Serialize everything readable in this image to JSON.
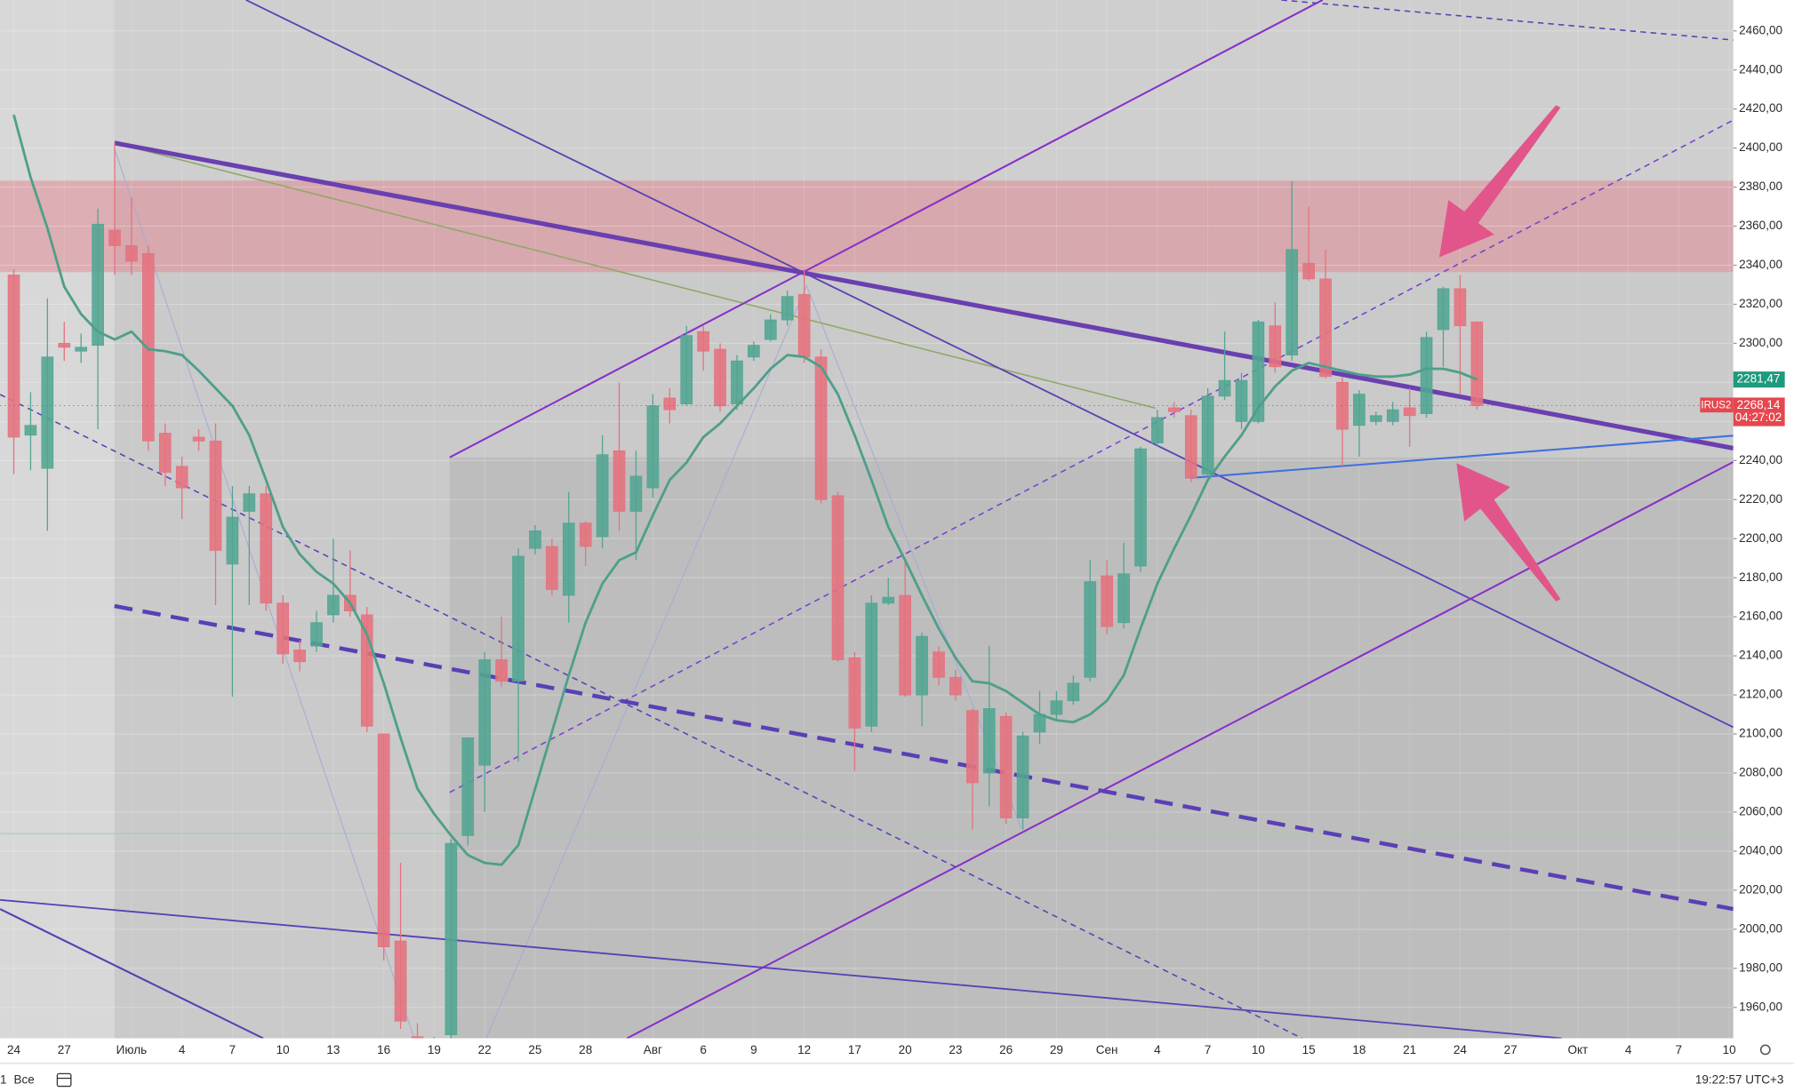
{
  "chart_data": {
    "type": "candlestick",
    "categories": [
      "24",
      null,
      null,
      "27",
      null,
      null,
      null,
      "Июль",
      null,
      null,
      "4",
      null,
      null,
      "7",
      null,
      null,
      "10",
      null,
      null,
      "13",
      null,
      null,
      "16",
      null,
      null,
      "19",
      null,
      null,
      "22",
      null,
      null,
      "25",
      null,
      null,
      "28",
      null,
      null,
      null,
      "Авг",
      null,
      null,
      "6",
      null,
      null,
      "9",
      null,
      null,
      "12",
      null,
      null,
      "17",
      null,
      null,
      "20",
      null,
      null,
      "23",
      null,
      null,
      "26",
      null,
      null,
      "29",
      null,
      null,
      "Сен",
      null,
      null,
      "4",
      null,
      null,
      "7",
      null,
      null,
      "10",
      null,
      null,
      "15",
      null,
      null,
      "18",
      null,
      null,
      "21",
      null,
      null,
      "24",
      null,
      null,
      "27",
      null,
      null,
      null,
      "Окт",
      null,
      null,
      "4",
      null,
      null,
      "7",
      null,
      null,
      "10"
    ],
    "open": [
      2335,
      2253,
      2236,
      2300,
      2296,
      2299,
      2358,
      2350,
      2346,
      2254,
      2237,
      2252,
      2250,
      2187,
      2214,
      2223,
      2167,
      2143,
      2145,
      2161,
      2171,
      2161,
      2100,
      1994,
      1945,
      1930,
      1946,
      2048,
      2084,
      2138,
      2127,
      2195,
      2196,
      2171,
      2208,
      2201,
      2245,
      2214,
      2226,
      2272,
      2269,
      2306,
      2297,
      2269,
      2293,
      2302,
      2312,
      2325,
      2293,
      2222,
      2139,
      2104,
      2167,
      2171,
      2120,
      2142,
      2129,
      2112,
      2080,
      2109,
      2057,
      2101,
      2110,
      2117,
      2129,
      2181,
      2157,
      2186,
      2249,
      2267,
      2263,
      2233,
      2273,
      2260,
      2260,
      2309,
      2294,
      2341,
      2333,
      2280,
      2258,
      2260,
      2260,
      2267,
      2264,
      2307,
      2328,
      2311,
      null,
      null,
      null,
      null,
      null,
      null,
      null,
      null,
      null,
      null,
      null,
      null,
      null,
      null,
      null
    ],
    "high": [
      2338,
      2275,
      2323,
      2311,
      2305,
      2369,
      2403,
      2375,
      2350,
      2259,
      2242,
      2256,
      2259,
      2227,
      2227,
      2227,
      2171,
      2148,
      2163,
      2200,
      2194,
      2165,
      2100,
      2034,
      1952,
      1945,
      2046,
      2098,
      2142,
      2160,
      2195,
      2207,
      2200,
      2224,
      2209,
      2253,
      2280,
      2245,
      2274,
      2277,
      2309,
      2309,
      2300,
      2294,
      2301,
      2315,
      2327,
      2338,
      2297,
      2224,
      2142,
      2171,
      2180,
      2190,
      2152,
      2145,
      2133,
      2113,
      2145,
      2111,
      2101,
      2122,
      2122,
      2130,
      2189,
      2189,
      2198,
      2247,
      2266,
      2270,
      2266,
      2277,
      2306,
      2285,
      2312,
      2321,
      2383,
      2370,
      2348,
      2283,
      2276,
      2265,
      2270,
      2277,
      2306,
      2329,
      2335,
      2311,
      null,
      null,
      null,
      null,
      null,
      null,
      null,
      null,
      null,
      null,
      null,
      null,
      null,
      null,
      null
    ],
    "low": [
      2233,
      2235,
      2204,
      2291,
      2290,
      2256,
      2335,
      2335,
      2245,
      2227,
      2210,
      2245,
      2166,
      2119,
      2166,
      2163,
      2136,
      2132,
      2142,
      2157,
      2160,
      2101,
      1984,
      1949,
      1925,
      1920,
      1943,
      2043,
      2060,
      2124,
      2086,
      2192,
      2171,
      2157,
      2186,
      2195,
      2204,
      2189,
      2221,
      2259,
      2268,
      2286,
      2265,
      2266,
      2291,
      2301,
      2309,
      2290,
      2218,
      2137,
      2081,
      2101,
      2166,
      2119,
      2104,
      2125,
      2117,
      2051,
      2063,
      2054,
      2051,
      2095,
      2107,
      2115,
      2127,
      2151,
      2154,
      2183,
      2247,
      2262,
      2229,
      2231,
      2271,
      2256,
      2259,
      2285,
      2291,
      2332,
      2282,
      2237,
      2242,
      2258,
      2258,
      2247,
      2262,
      2288,
      2274,
      2266,
      null,
      null,
      null,
      null,
      null,
      null,
      null,
      null,
      null,
      null,
      null,
      null,
      null,
      null,
      null
    ],
    "close": [
      2252,
      2258,
      2293,
      2298,
      2298,
      2361,
      2350,
      2342,
      2250,
      2234,
      2226,
      2250,
      2194,
      2211,
      2223,
      2167,
      2141,
      2137,
      2157,
      2171,
      2163,
      2104,
      1991,
      1953,
      1930,
      1935,
      2044,
      2098,
      2138,
      2127,
      2191,
      2204,
      2174,
      2208,
      2196,
      2243,
      2214,
      2232,
      2268,
      2266,
      2304,
      2296,
      2268,
      2291,
      2299,
      2312,
      2324,
      2293,
      2220,
      2138,
      2103,
      2167,
      2170,
      2120,
      2150,
      2129,
      2120,
      2075,
      2113,
      2057,
      2099,
      2110,
      2117,
      2126,
      2178,
      2155,
      2182,
      2246,
      2262,
      2265,
      2231,
      2273,
      2281,
      2281,
      2311,
      2288,
      2348,
      2333,
      2283,
      2256,
      2274,
      2263,
      2266,
      2263,
      2303,
      2328,
      2309,
      2268.14,
      null,
      null,
      null,
      null,
      null,
      null,
      null,
      null,
      null,
      null,
      null,
      null,
      null,
      null,
      null
    ],
    "up_color": "#52a592",
    "down_color": "#e5727e",
    "ma": {
      "color": "#4f9f8a",
      "values": [
        2417,
        2385,
        2359,
        2329,
        2315,
        2306,
        2302,
        2306,
        2297,
        2296,
        2294,
        2286,
        2277,
        2268,
        2253,
        2230,
        2206,
        2192,
        2183,
        2177,
        2167,
        2151,
        2126,
        2098,
        2072,
        2059,
        2048,
        2038,
        2034,
        2033,
        2043,
        2072,
        2101,
        2130,
        2157,
        2177,
        2189,
        2193,
        2212,
        2230,
        2239,
        2252,
        2259,
        2268,
        2277,
        2287,
        2294,
        2293,
        2288,
        2274,
        2253,
        2230,
        2206,
        2189,
        2171,
        2154,
        2139,
        2127,
        2126,
        2122,
        2116,
        2110,
        2107,
        2106,
        2110,
        2117,
        2130,
        2154,
        2177,
        2195,
        2212,
        2230,
        2242,
        2253,
        2267,
        2278,
        2286,
        2290,
        2288,
        2286,
        2284,
        2283,
        2283,
        2284,
        2287,
        2287,
        2285,
        2281.47,
        null,
        null,
        null,
        null,
        null,
        null,
        null,
        null,
        null,
        null,
        null,
        null,
        null,
        null,
        null
      ]
    },
    "ylim": [
      1944.2,
      2475.8
    ],
    "yticks": [
      {
        "value": 1960,
        "label": "1960,00"
      },
      {
        "value": 1980,
        "label": "1980,00"
      },
      {
        "value": 2000,
        "label": "2000,00"
      },
      {
        "value": 2020,
        "label": "2020,00"
      },
      {
        "value": 2040,
        "label": "2040,00"
      },
      {
        "value": 2060,
        "label": "2060,00"
      },
      {
        "value": 2080,
        "label": "2080,00"
      },
      {
        "value": 2100,
        "label": "2100,00"
      },
      {
        "value": 2120,
        "label": "2120,00"
      },
      {
        "value": 2140,
        "label": "2140,00"
      },
      {
        "value": 2160,
        "label": "2160,00"
      },
      {
        "value": 2180,
        "label": "2180,00"
      },
      {
        "value": 2200,
        "label": "2200,00"
      },
      {
        "value": 2220,
        "label": "2220,00"
      },
      {
        "value": 2240,
        "label": "2240,00"
      },
      {
        "value": 2260,
        "label": "2260,00"
      },
      {
        "value": 2280,
        "label": "2280,00"
      },
      {
        "value": 2300,
        "label": "2300,00"
      },
      {
        "value": 2320,
        "label": "2320,00"
      },
      {
        "value": 2340,
        "label": "2340,00"
      },
      {
        "value": 2360,
        "label": "2360,00"
      },
      {
        "value": 2380,
        "label": "2380,00"
      },
      {
        "value": 2400,
        "label": "2400,00"
      },
      {
        "value": 2420,
        "label": "2420,00"
      },
      {
        "value": 2440,
        "label": "2440,00"
      },
      {
        "value": 2460,
        "label": "2460,00"
      }
    ],
    "grid": true,
    "price_labels": [
      {
        "value": 2281.47,
        "label": "2281,47",
        "color": "#1e9a7c"
      },
      {
        "name": "IRUS2",
        "value": 2268.14,
        "label": "2268,14",
        "countdown": "04:27:02",
        "color": "#e5474f"
      }
    ]
  },
  "toolbar": {
    "range": "1",
    "all": "Все",
    "clock": "19:22:57 UTC+3"
  }
}
